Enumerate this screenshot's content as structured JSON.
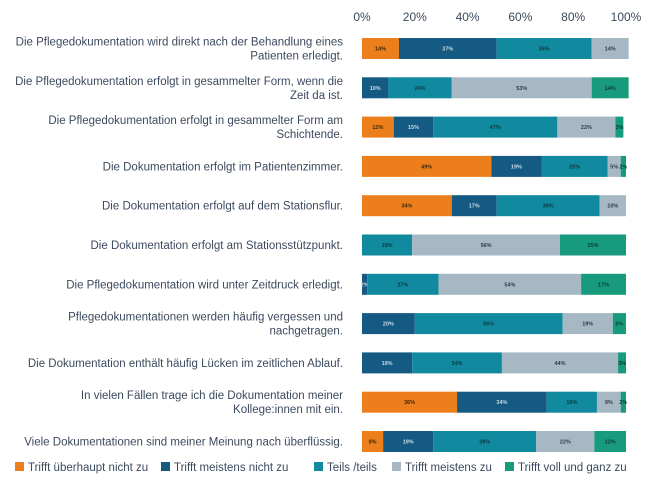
{
  "chart_data": {
    "type": "bar",
    "orientation": "horizontal",
    "stacked": true,
    "xlim": [
      0,
      100
    ],
    "x_ticks": [
      "0%",
      "20%",
      "40%",
      "60%",
      "80%",
      "100%"
    ],
    "categories": [
      [
        "Die Pflegedokumentation wird direkt nach der Behandlung eines",
        "Patienten erledigt."
      ],
      [
        "Die Pflegedokumentation erfolgt in gesammelter Form, wenn die",
        "Zeit da ist."
      ],
      [
        "Die Pflegedokumentation erfolgt in gesammelter Form am",
        "Schichtende."
      ],
      [
        "Die Dokumentation erfolgt im Patientenzimmer."
      ],
      [
        "Die Dokumentation erfolgt auf dem Stationsflur."
      ],
      [
        "Die Dokumentation erfolgt am Stationsstützpunkt."
      ],
      [
        "Die Pflegedokumentation wird unter Zeitdruck erledigt."
      ],
      [
        "Pflegedokumentationen werden häufig vergessen und",
        "nachgetragen."
      ],
      [
        "Die Dokumentation enthält häufig Lücken im zeitlichen Ablauf."
      ],
      [
        "In vielen Fällen trage ich die Dokumentation meiner",
        "Kollege:innen mit ein."
      ],
      [
        "Viele Dokumentationen sind meiner Meinung nach überflüssig."
      ]
    ],
    "series": [
      {
        "name": "Trifft überhaupt nicht zu",
        "color": "#ec7f1c",
        "label_color": "#3a2a10",
        "values": [
          14,
          0,
          12,
          49,
          34,
          0,
          0,
          0,
          0,
          36,
          8
        ]
      },
      {
        "name": "Trifft meistens nicht zu",
        "color": "#155a82",
        "label_color": "#c9dbe6",
        "values": [
          37,
          10,
          15,
          19,
          17,
          0,
          2,
          20,
          19,
          34,
          19
        ]
      },
      {
        "name": "Teils /teils",
        "color": "#11899e",
        "label_color": "#0d3a44",
        "values": [
          36,
          24,
          47,
          25,
          39,
          19,
          27,
          56,
          34,
          19,
          39
        ]
      },
      {
        "name": "Trifft meistens zu",
        "color": "#a7b8c5",
        "label_color": "#2d3b48",
        "values": [
          14,
          53,
          22,
          5,
          10,
          56,
          54,
          19,
          44,
          9,
          22
        ]
      },
      {
        "name": "Trifft voll und ganz zu",
        "color": "#189a7c",
        "label_color": "#0c3b31",
        "values": [
          0,
          14,
          3,
          2,
          0,
          25,
          17,
          5,
          3,
          2,
          12
        ]
      }
    ],
    "value_labels": [
      [
        "14%",
        "37%",
        "36%",
        "14%",
        ""
      ],
      [
        "",
        "10%",
        "24%",
        "53%",
        "14%"
      ],
      [
        "12%",
        "15%",
        "47%",
        "22%",
        "3%"
      ],
      [
        "49%",
        "19%",
        "25%",
        "5%",
        "2%"
      ],
      [
        "34%",
        "17%",
        "39%",
        "10%",
        ""
      ],
      [
        "",
        "",
        "19%",
        "56%",
        "25%"
      ],
      [
        "",
        "2%",
        "27%",
        "54%",
        "17%"
      ],
      [
        "",
        "20%",
        "56%",
        "19%",
        "5%"
      ],
      [
        "",
        "19%",
        "34%",
        "44%",
        "3%"
      ],
      [
        "36%",
        "34%",
        "19%",
        "9%",
        "2%"
      ],
      [
        "8%",
        "19%",
        "39%",
        "22%",
        "12%"
      ]
    ],
    "grid": false,
    "legend_position": "bottom"
  }
}
